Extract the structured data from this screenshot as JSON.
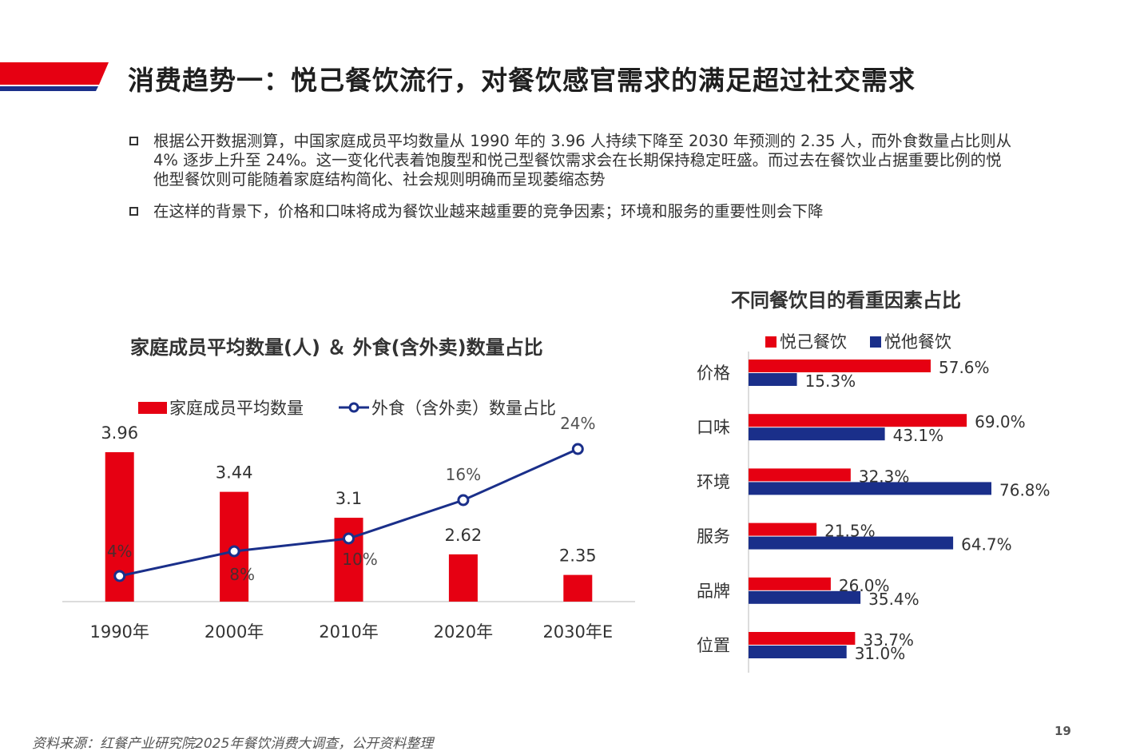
{
  "slide": {
    "title": "消费趋势一：悦己餐饮流行，对餐饮感官需求的满足超过社交需求",
    "bullets": [
      "根据公开数据测算，中国家庭成员平均数量从 1990 年的 3.96 人持续下降至 2030 年预测的 2.35 人，而外食数量占比则从 4% 逐步上升至 24%。这一变化代表着饱腹型和悦己型餐饮需求会在长期保持稳定旺盛。而过去在餐饮业占据重要比例的悦他型餐饮则可能随着家庭结构简化、社会规则明确而呈现萎缩态势",
      "在这样的背景下，价格和口味将成为餐饮业越来越重要的竞争因素；环境和服务的重要性则会下降"
    ],
    "source": "资料来源：红餐产业研究院2025年餐饮消费大调查，公开资料整理",
    "page_number": "19",
    "colors": {
      "red": "#e60012",
      "navy": "#1a2f8a"
    }
  },
  "chart_data": [
    {
      "type": "bar",
      "title": "家庭成员平均数量(人) ＆  外食(含外卖)数量占比",
      "categories": [
        "1990年",
        "2000年",
        "2010年",
        "2020年",
        "2030年E"
      ],
      "series": [
        {
          "name": "家庭成员平均数量",
          "type": "bar",
          "values": [
            3.96,
            3.44,
            3.1,
            2.62,
            2.35
          ],
          "labels": [
            "3.96",
            "3.44",
            "3.1",
            "2.62",
            "2.35"
          ],
          "color": "#e60012"
        },
        {
          "name": "外食（含外卖）数量占比",
          "type": "line",
          "values": [
            4,
            8,
            10,
            16,
            24
          ],
          "labels": [
            "4%",
            "8%",
            "10%",
            "16%",
            "24%"
          ],
          "color": "#1a2f8a"
        }
      ],
      "bar_axis_range": [
        2,
        4
      ],
      "line_axis_range": [
        0,
        30
      ],
      "legend": "top",
      "grid": false
    },
    {
      "type": "bar",
      "orientation": "horizontal",
      "title": "不同餐饮目的看重因素占比",
      "categories": [
        "价格",
        "口味",
        "环境",
        "服务",
        "品牌",
        "位置"
      ],
      "series": [
        {
          "name": "悦己餐饮",
          "values": [
            57.6,
            69.0,
            32.3,
            21.5,
            26.0,
            33.7
          ],
          "labels": [
            "57.6%",
            "69.0%",
            "32.3%",
            "21.5%",
            "26.0%",
            "33.7%"
          ],
          "color": "#e60012"
        },
        {
          "name": "悦他餐饮",
          "values": [
            15.3,
            43.1,
            76.8,
            64.7,
            35.4,
            31.0
          ],
          "labels": [
            "15.3%",
            "43.1%",
            "76.8%",
            "64.7%",
            "35.4%",
            "31.0%"
          ],
          "color": "#1a2f8a"
        }
      ],
      "xlim": [
        0,
        100
      ],
      "legend": "top",
      "grid": false
    }
  ]
}
